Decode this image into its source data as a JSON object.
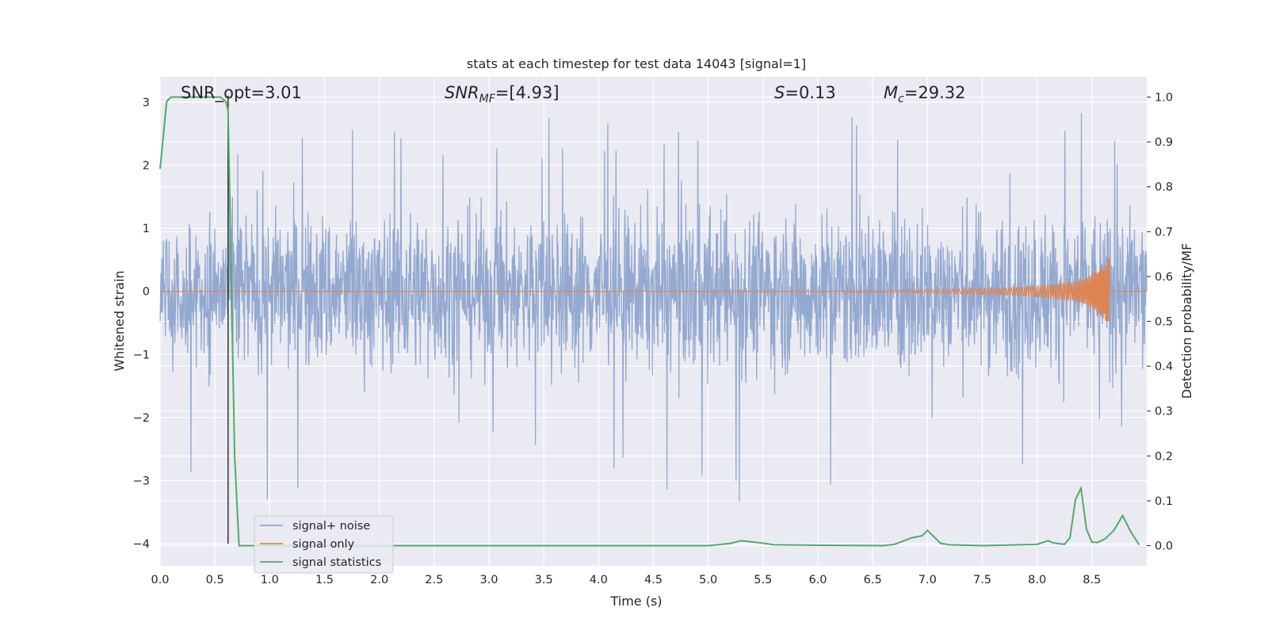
{
  "chart_data": {
    "type": "line",
    "title": "stats at each timestep for test data 14043 [signal=1]",
    "xlabel": "Time (s)",
    "ylabel_left": "Whitened strain",
    "ylabel_right": "Detection probability/MF",
    "xlim": [
      0.0,
      9.0
    ],
    "ylim_left": [
      -4.35,
      3.4
    ],
    "ylim_right": [
      -0.045,
      1.045
    ],
    "x_ticks": [
      "0.0",
      "0.5",
      "1.0",
      "1.5",
      "2.0",
      "2.5",
      "3.0",
      "3.5",
      "4.0",
      "4.5",
      "5.0",
      "5.5",
      "6.0",
      "6.5",
      "7.0",
      "7.5",
      "8.0",
      "8.5"
    ],
    "y_ticks_left": [
      "−4",
      "−3",
      "−2",
      "−1",
      "0",
      "1",
      "2",
      "3"
    ],
    "y_ticks_right": [
      "0.0",
      "0.1",
      "0.2",
      "0.3",
      "0.4",
      "0.5",
      "0.6",
      "0.7",
      "0.8",
      "0.9",
      "1.0"
    ],
    "grid": true,
    "legend_position": "lower-left",
    "annotations": {
      "snr_opt": "SNR_opt=3.01",
      "snr_mf_main": "SNR",
      "snr_mf_sub": "MF",
      "snr_mf_rest": "=[4.93]",
      "s_main": "S",
      "s_rest": "=0.13",
      "mc_main": "M",
      "mc_sub": "c",
      "mc_rest": "=29.32"
    },
    "series": [
      {
        "name": "signal+ noise",
        "color": "#8fa5cd",
        "axis": "left",
        "x_range": [
          0.0,
          9.0
        ],
        "amplitude_envelope": [
          {
            "x": 0.0,
            "low": -2.6,
            "high": 2.5
          },
          {
            "x": 0.6,
            "low": -4.0,
            "high": 2.3
          },
          {
            "x": 1.8,
            "low": -2.8,
            "high": 2.6
          },
          {
            "x": 3.2,
            "low": -2.75,
            "high": 2.8
          },
          {
            "x": 5.7,
            "low": -3.45,
            "high": 2.75
          },
          {
            "x": 7.25,
            "low": -2.2,
            "high": 3.05
          },
          {
            "x": 7.75,
            "low": -3.6,
            "high": 2.4
          },
          {
            "x": 8.4,
            "low": -2.1,
            "high": 3.05
          },
          {
            "x": 9.0,
            "low": -2.5,
            "high": 2.1
          }
        ]
      },
      {
        "name": "signal only",
        "color": "#dd8452",
        "axis": "left",
        "description_points": [
          {
            "x": 0.0,
            "amp": 0.0
          },
          {
            "x": 6.0,
            "amp": 0.01
          },
          {
            "x": 7.5,
            "amp": 0.05
          },
          {
            "x": 8.3,
            "amp": 0.15
          },
          {
            "x": 8.66,
            "amp": 0.55
          }
        ]
      },
      {
        "name": "signal statistics",
        "color": "#55a868",
        "axis": "right",
        "x": [
          0.0,
          0.06,
          0.1,
          0.55,
          0.6,
          0.62,
          0.68,
          0.72,
          1.0,
          2.0,
          3.0,
          4.0,
          5.0,
          5.2,
          5.3,
          5.45,
          5.6,
          6.0,
          6.6,
          6.7,
          6.85,
          6.95,
          7.0,
          7.12,
          7.2,
          7.5,
          8.0,
          8.1,
          8.15,
          8.25,
          8.3,
          8.35,
          8.4,
          8.45,
          8.5,
          8.55,
          8.62,
          8.7,
          8.78,
          8.85,
          8.93
        ],
        "y": [
          0.84,
          0.99,
          1.0,
          1.0,
          0.99,
          0.97,
          0.2,
          0.0,
          0.0,
          0.0,
          0.0,
          0.0,
          0.0,
          0.005,
          0.011,
          0.007,
          0.002,
          0.001,
          0.0,
          0.003,
          0.017,
          0.022,
          0.034,
          0.005,
          0.002,
          0.0,
          0.003,
          0.011,
          0.006,
          0.003,
          0.018,
          0.103,
          0.128,
          0.037,
          0.008,
          0.007,
          0.015,
          0.034,
          0.067,
          0.033,
          0.002
        ]
      }
    ],
    "vertical_marker_x": 0.62
  }
}
